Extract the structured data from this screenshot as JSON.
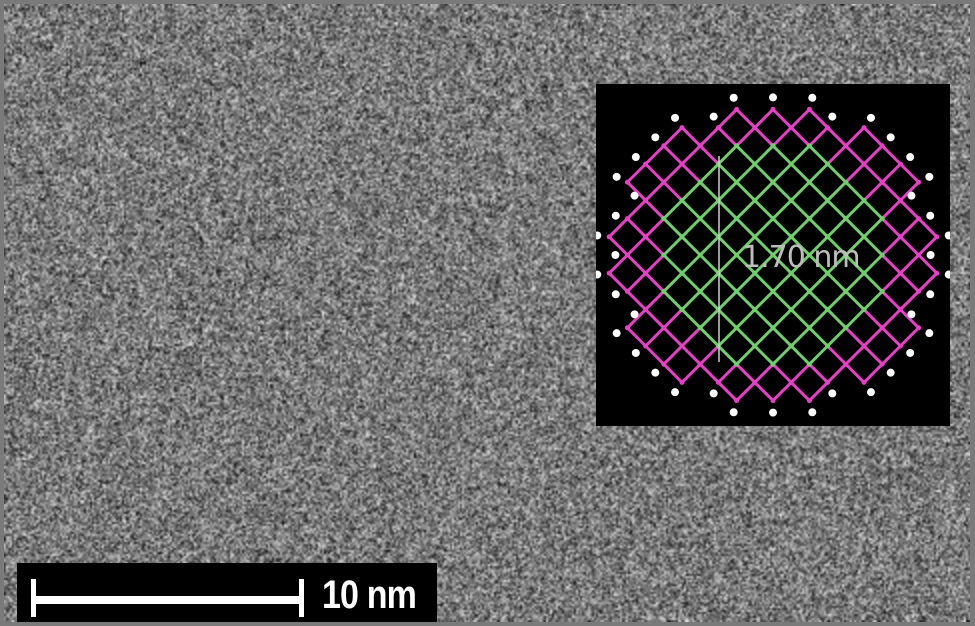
{
  "image": {
    "type": "TEM micrograph",
    "background_color": "#7a7a7a"
  },
  "inset": {
    "measurement_label": "1.70 nm",
    "core_color": "#6fcf6a",
    "shell_color": "#e83ec8",
    "atom_color": "#ffffff",
    "background_color": "#000000"
  },
  "scale_bar": {
    "label": "10 nm",
    "color": "#ffffff",
    "background_color": "#000000"
  }
}
